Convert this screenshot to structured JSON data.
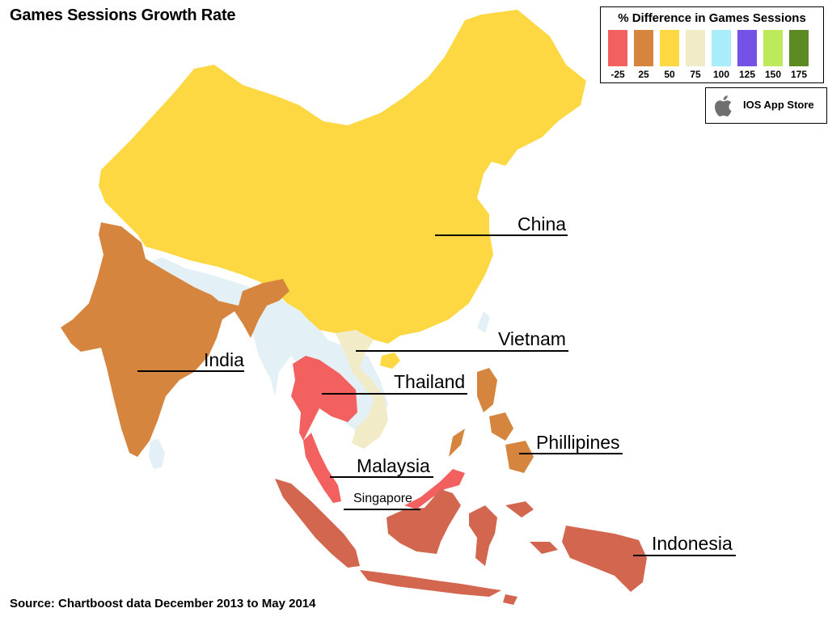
{
  "title": "Games Sessions Growth Rate",
  "source": "Source: Chartboost data December 2013 to May 2014",
  "legend": {
    "title": "% Difference in Games Sessions",
    "bins": [
      {
        "value": "-25",
        "color": "#f2605f"
      },
      {
        "value": "25",
        "color": "#d6853e"
      },
      {
        "value": "50",
        "color": "#fdd843"
      },
      {
        "value": "75",
        "color": "#f1ebc7"
      },
      {
        "value": "100",
        "color": "#a9ecfa"
      },
      {
        "value": "125",
        "color": "#7552e6"
      },
      {
        "value": "150",
        "color": "#bdea5b"
      },
      {
        "value": "175",
        "color": "#5e8a23"
      }
    ]
  },
  "store": {
    "label": "IOS App Store",
    "icon": "apple-icon"
  },
  "countries": {
    "china": {
      "label": "China",
      "color": "#fdd843"
    },
    "vietnam": {
      "label": "Vietnam",
      "color": "#f1ebc7"
    },
    "india": {
      "label": "India",
      "color": "#d6853e"
    },
    "thailand": {
      "label": "Thailand",
      "color": "#f2605f"
    },
    "phillipines": {
      "label": "Phillipines",
      "color": "#d6853e"
    },
    "malaysia": {
      "label": "Malaysia",
      "color": "#f2605f"
    },
    "singapore": {
      "label": "Singapore",
      "color": "#f2605f"
    },
    "indonesia": {
      "label": "Indonesia",
      "color": "#d2664e"
    },
    "nodata": {
      "color": "#e3f1f7"
    }
  }
}
